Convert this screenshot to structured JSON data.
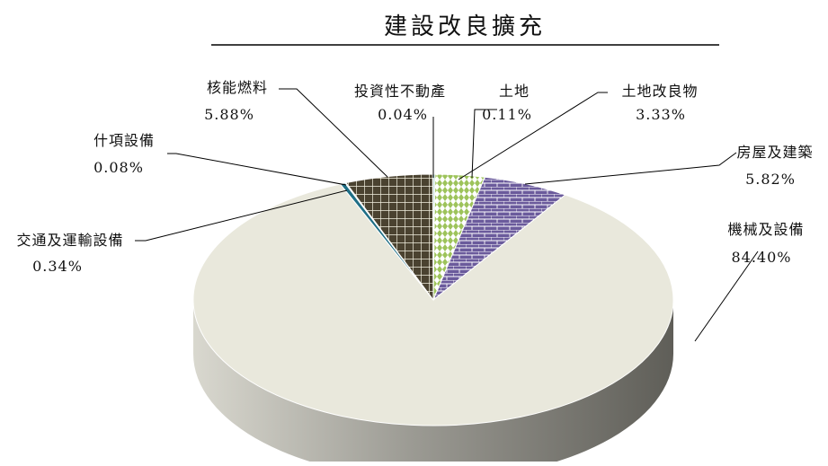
{
  "chart_data": {
    "type": "pie",
    "title": "建設改良擴充",
    "categories": [
      "土地",
      "土地改良物",
      "房屋及建築",
      "機械及設備",
      "交通及運輸設備",
      "什項設備",
      "核能燃料",
      "投資性不動產"
    ],
    "values": [
      0.11,
      3.33,
      5.82,
      84.4,
      0.34,
      0.08,
      5.88,
      0.04
    ],
    "value_labels": [
      "0.11%",
      "3.33%",
      "5.82%",
      "84.40%",
      "0.34%",
      "0.08%",
      "5.88%",
      "0.04%"
    ],
    "unit": "%",
    "legend": "none",
    "colors": [
      "#7fb2a8",
      "#9dc35a",
      "#6a5a9a",
      "#e9e8dc",
      "#1f6f86",
      "#7fb2a8",
      "#4e4632",
      "#c9c6b8"
    ]
  }
}
